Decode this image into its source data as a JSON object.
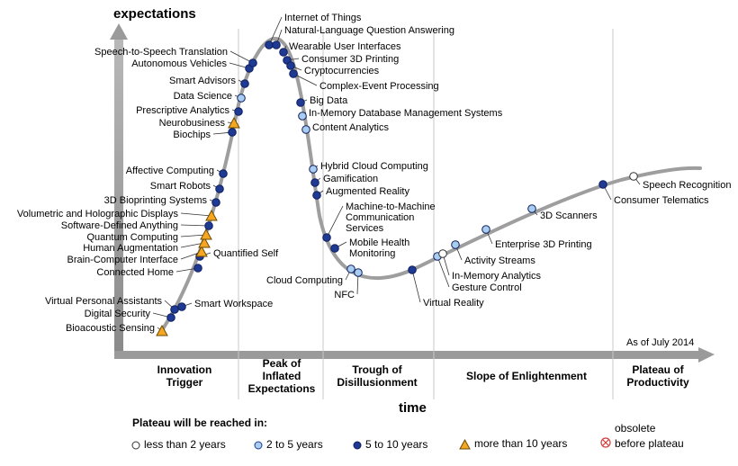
{
  "title_y": "expectations",
  "title_x": "time",
  "as_of": "As of July 2014",
  "phases": [
    {
      "label": "Innovation\nTrigger"
    },
    {
      "label": "Peak of\nInflated\nExpectations"
    },
    {
      "label": "Trough of\nDisillusionment"
    },
    {
      "label": "Slope of Enlightenment"
    },
    {
      "label": "Plateau of\nProductivity"
    }
  ],
  "legend": {
    "title": "Plateau will be reached in:",
    "items": [
      {
        "label": "less than 2 years",
        "symbol": "circle-white"
      },
      {
        "label": "2 to 5 years",
        "symbol": "circle-light"
      },
      {
        "label": "5 to 10 years",
        "symbol": "circle-dark"
      },
      {
        "label": "more than 10 years",
        "symbol": "triangle-orange"
      }
    ],
    "obsolete_line1": "obsolete",
    "obsolete_line2": "before plateau"
  },
  "colors": {
    "curve": "#9e9e9e",
    "dark": "#1f3a93",
    "light": "#a9cdf0",
    "white": "#ffffff",
    "triangle": "#f5a623",
    "obsolete": "#d63a3a",
    "divider": "#c8c8c8"
  },
  "technologies": [
    {
      "name": "Bioacoustic Sensing",
      "type": "triangle"
    },
    {
      "name": "Digital Security",
      "type": "dark"
    },
    {
      "name": "Virtual Personal Assistants",
      "type": "dark"
    },
    {
      "name": "Smart Workspace",
      "type": "dark"
    },
    {
      "name": "Connected Home",
      "type": "dark"
    },
    {
      "name": "Quantified Self",
      "type": "dark"
    },
    {
      "name": "Brain-Computer Interface",
      "type": "triangle"
    },
    {
      "name": "Human Augmentation",
      "type": "triangle"
    },
    {
      "name": "Quantum Computing",
      "type": "triangle"
    },
    {
      "name": "Software-Defined Anything",
      "type": "dark"
    },
    {
      "name": "Volumetric and Holographic Displays",
      "type": "triangle"
    },
    {
      "name": "3D Bioprinting Systems",
      "type": "dark"
    },
    {
      "name": "Smart Robots",
      "type": "dark"
    },
    {
      "name": "Affective Computing",
      "type": "dark"
    },
    {
      "name": "Biochips",
      "type": "dark"
    },
    {
      "name": "Neurobusiness",
      "type": "triangle"
    },
    {
      "name": "Prescriptive Analytics",
      "type": "dark"
    },
    {
      "name": "Data Science",
      "type": "light"
    },
    {
      "name": "Smart Advisors",
      "type": "dark"
    },
    {
      "name": "Autonomous Vehicles",
      "type": "dark"
    },
    {
      "name": "Speech-to-Speech Translation",
      "type": "dark"
    },
    {
      "name": "Internet of Things",
      "type": "dark"
    },
    {
      "name": "Natural-Language Question Answering",
      "type": "dark"
    },
    {
      "name": "Wearable User Interfaces",
      "type": "dark"
    },
    {
      "name": "Consumer 3D Printing",
      "type": "dark"
    },
    {
      "name": "Cryptocurrencies",
      "type": "dark"
    },
    {
      "name": "Complex-Event Processing",
      "type": "dark"
    },
    {
      "name": "Big Data",
      "type": "dark"
    },
    {
      "name": "In-Memory Database Management Systems",
      "type": "light"
    },
    {
      "name": "Content Analytics",
      "type": "light"
    },
    {
      "name": "Hybrid Cloud Computing",
      "type": "light"
    },
    {
      "name": "Gamification",
      "type": "dark"
    },
    {
      "name": "Augmented Reality",
      "type": "dark"
    },
    {
      "name": "Machine-to-Machine\nCommunication\nServices",
      "type": "dark"
    },
    {
      "name": "Mobile Health\nMonitoring",
      "type": "dark"
    },
    {
      "name": "Cloud Computing",
      "type": "light"
    },
    {
      "name": "NFC",
      "type": "light"
    },
    {
      "name": "Virtual Reality",
      "type": "dark"
    },
    {
      "name": "Gesture Control",
      "type": "light"
    },
    {
      "name": "In-Memory Analytics",
      "type": "white"
    },
    {
      "name": "Activity Streams",
      "type": "light"
    },
    {
      "name": "Enterprise 3D Printing",
      "type": "light"
    },
    {
      "name": "3D Scanners",
      "type": "light"
    },
    {
      "name": "Consumer Telematics",
      "type": "dark"
    },
    {
      "name": "Speech Recognition",
      "type": "white"
    }
  ]
}
